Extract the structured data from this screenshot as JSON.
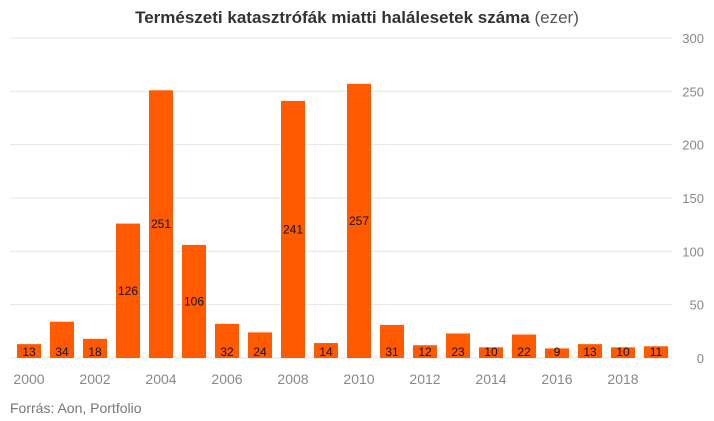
{
  "chart_data": {
    "type": "bar",
    "title": "Természeti katasztrófák miatti halálesetek száma",
    "title_unit": "(ezer)",
    "source": "Forrás: Aon, Portfolio",
    "color": "#ff5a00",
    "grid": true,
    "categories": [
      "2000",
      "2001",
      "2002",
      "2003",
      "2004",
      "2005",
      "2006",
      "2007",
      "2008",
      "2009",
      "2010",
      "2011",
      "2012",
      "2013",
      "2014",
      "2015",
      "2016",
      "2017",
      "2018",
      "2019"
    ],
    "values": [
      13,
      34,
      18,
      126,
      251,
      106,
      32,
      24,
      241,
      14,
      257,
      31,
      12,
      23,
      10,
      22,
      9,
      13,
      10,
      11
    ],
    "x_tick_labels": [
      "2000",
      "2002",
      "2004",
      "2006",
      "2008",
      "2010",
      "2012",
      "2014",
      "2016",
      "2018"
    ],
    "y_tick_labels": [
      "0",
      "50",
      "100",
      "150",
      "200",
      "250",
      "300"
    ],
    "ylim": [
      0,
      300
    ]
  }
}
